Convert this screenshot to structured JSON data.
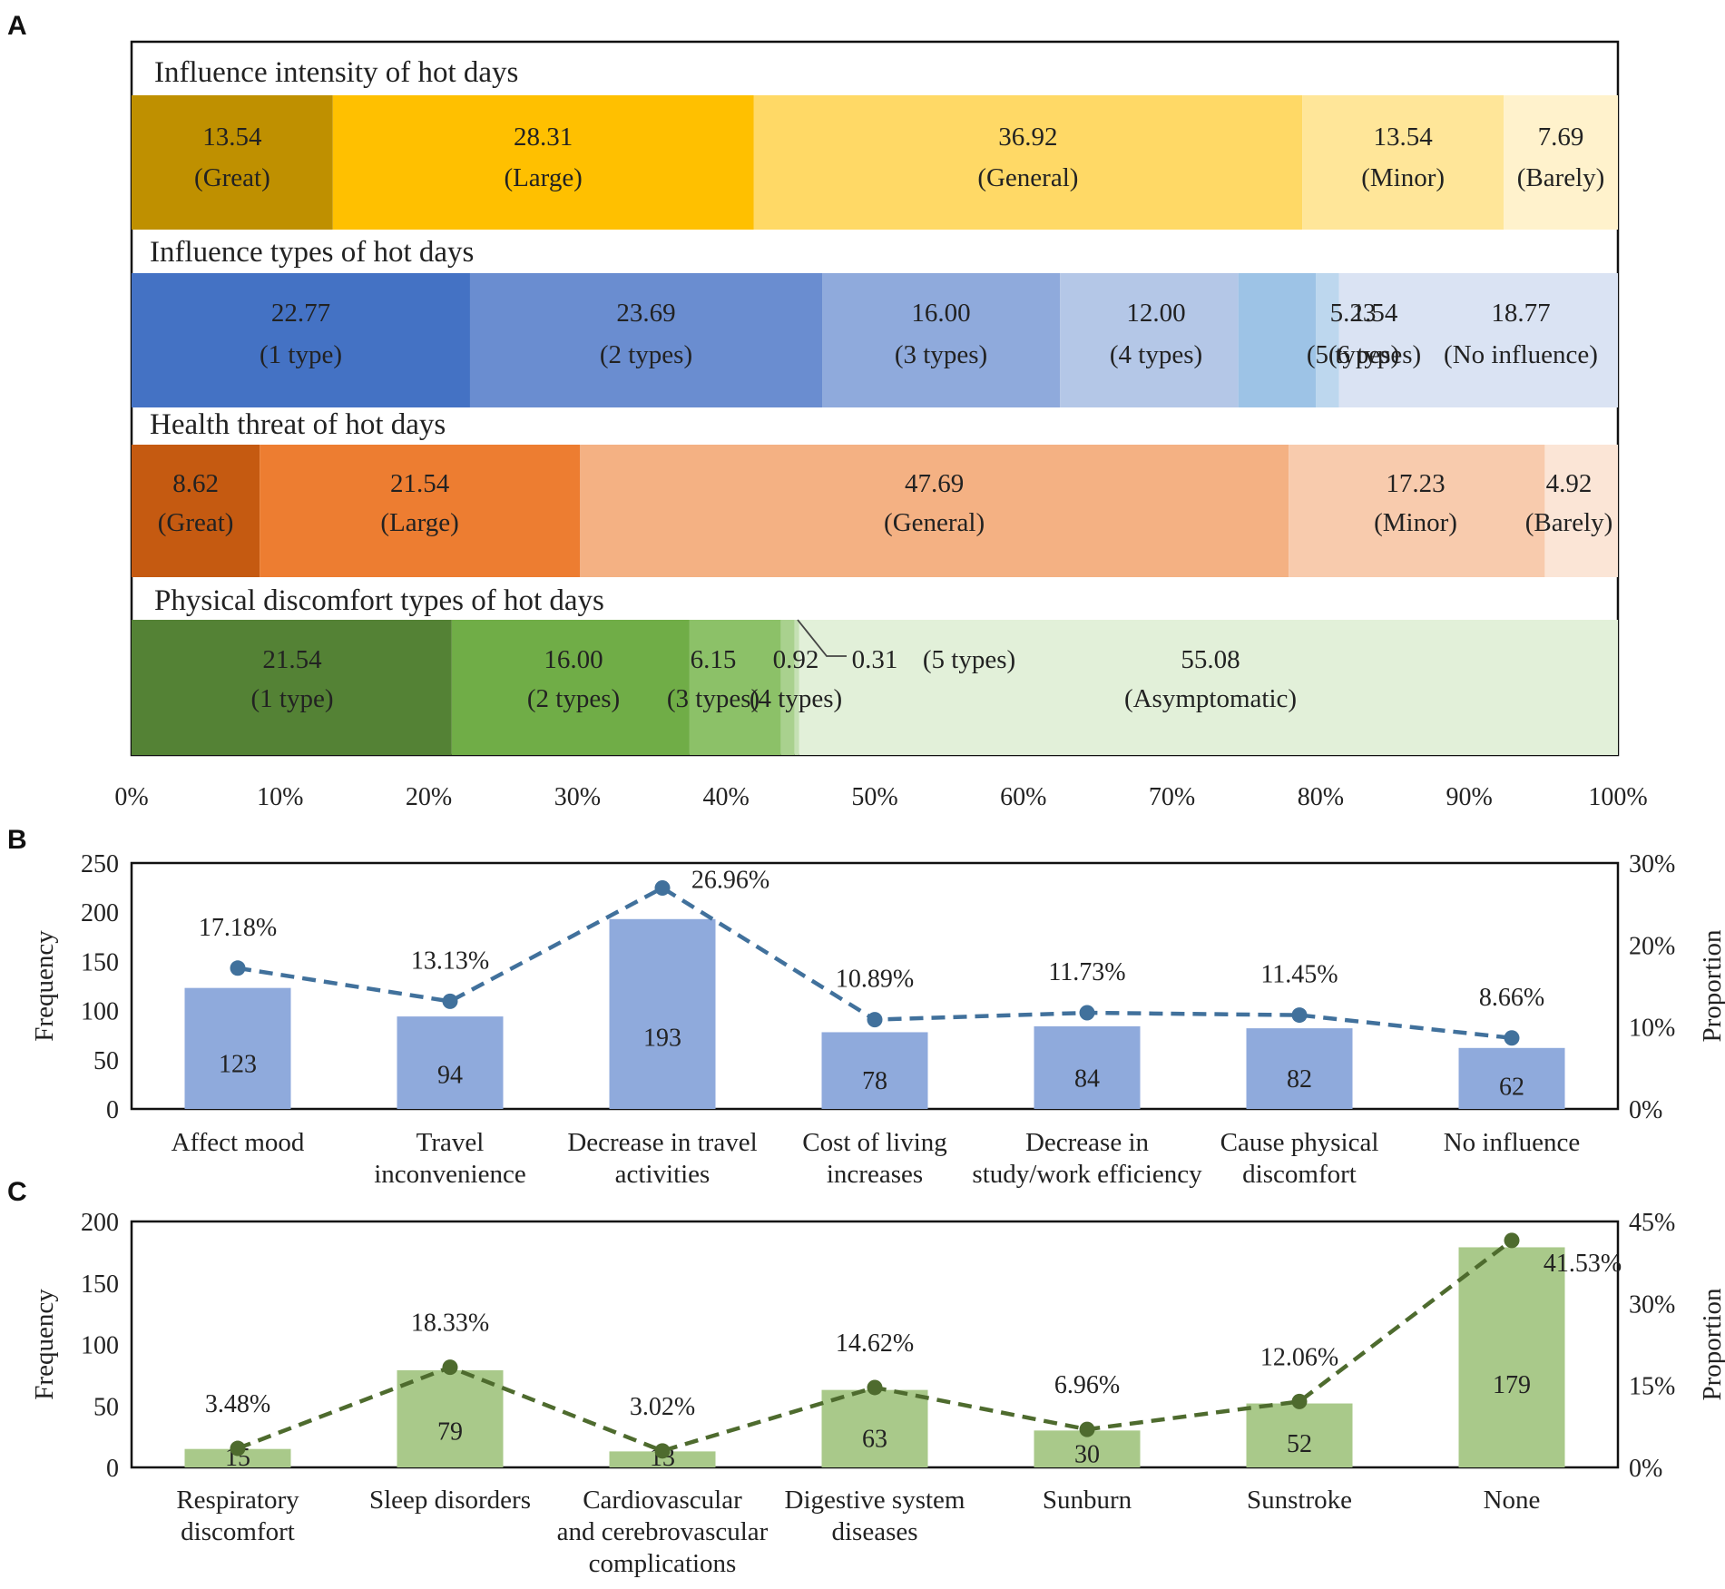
{
  "chart_data": [
    {
      "panel": "A",
      "type": "bar",
      "subtype": "stacked-100-percent-horizontal",
      "x_ticks": [
        "0%",
        "10%",
        "20%",
        "30%",
        "40%",
        "50%",
        "60%",
        "70%",
        "80%",
        "90%",
        "100%"
      ],
      "xlim": [
        0,
        100
      ],
      "rows": [
        {
          "title": "Influence intensity of hot days",
          "segments": [
            {
              "value": 13.54,
              "value_label": "13.54",
              "category": "(Great)",
              "color": "#BF9000"
            },
            {
              "value": 28.31,
              "value_label": "28.31",
              "category": "(Large)",
              "color": "#FFC000"
            },
            {
              "value": 36.92,
              "value_label": "36.92",
              "category": "(General)",
              "color": "#FFD966"
            },
            {
              "value": 13.54,
              "value_label": "13.54",
              "category": "(Minor)",
              "color": "#FFE699"
            },
            {
              "value": 7.69,
              "value_label": "7.69",
              "category": "(Barely)",
              "color": "#FFF2CC"
            }
          ]
        },
        {
          "title": "Influence types of hot days",
          "segments": [
            {
              "value": 22.77,
              "value_label": "22.77",
              "category": "(1 type)",
              "color": "#4472C4"
            },
            {
              "value": 23.69,
              "value_label": "23.69",
              "category": "(2 types)",
              "color": "#6A8DD0"
            },
            {
              "value": 16.0,
              "value_label": "16.00",
              "category": "(3 types)",
              "color": "#8FAADC"
            },
            {
              "value": 12.0,
              "value_label": "12.00",
              "category": "(4 types)",
              "color": "#B4C7E7"
            },
            {
              "value": 5.23,
              "value_label": "5.23",
              "category": "(5 types)",
              "color": "#9DC3E6"
            },
            {
              "value": 1.54,
              "value_label": "1.54",
              "category": "(6 types)",
              "color": "#BDD7EE"
            },
            {
              "value": 18.77,
              "value_label": "18.77",
              "category": "(No influence)",
              "color": "#DAE3F3"
            }
          ]
        },
        {
          "title": "Health threat of hot days",
          "segments": [
            {
              "value": 8.62,
              "value_label": "8.62",
              "category": "(Great)",
              "color": "#C55A11"
            },
            {
              "value": 21.54,
              "value_label": "21.54",
              "category": "(Large)",
              "color": "#ED7D31"
            },
            {
              "value": 47.69,
              "value_label": "47.69",
              "category": "(General)",
              "color": "#F4B183"
            },
            {
              "value": 17.23,
              "value_label": "17.23",
              "category": "(Minor)",
              "color": "#F8CBAD"
            },
            {
              "value": 4.92,
              "value_label": "4.92",
              "category": "(Barely)",
              "color": "#FBE5D6"
            }
          ]
        },
        {
          "title": "Physical discomfort types of hot days",
          "segments": [
            {
              "value": 21.54,
              "value_label": "21.54",
              "category": "(1 type)",
              "color": "#548235"
            },
            {
              "value": 16.0,
              "value_label": "16.00",
              "category": "(2 types)",
              "color": "#70AD47"
            },
            {
              "value": 6.15,
              "value_label": "6.15",
              "category": "(3 types)",
              "color": "#8CC168"
            },
            {
              "value": 0.92,
              "value_label": "0.92",
              "category": "(4 types)",
              "color": "#A9D18E"
            },
            {
              "value": 0.31,
              "value_label": "0.31",
              "category": "(5 types)",
              "color": "#C5E0B4"
            },
            {
              "value": 55.08,
              "value_label": "55.08",
              "category": "(Asymptomatic)",
              "color": "#E2F0D9"
            }
          ]
        }
      ]
    },
    {
      "panel": "B",
      "type": "bar",
      "subtype": "bar-with-line-dual-axis",
      "categories": [
        [
          "Affect mood"
        ],
        [
          "Travel",
          "inconvenience"
        ],
        [
          "Decrease in travel",
          "activities"
        ],
        [
          "Cost of living",
          "increases"
        ],
        [
          "Decrease in",
          "study/work efficiency"
        ],
        [
          "Cause physical",
          "discomfort"
        ],
        [
          "No influence"
        ]
      ],
      "values": [
        123,
        94,
        193,
        78,
        84,
        82,
        62
      ],
      "value_labels": [
        "123",
        "94",
        "193",
        "78",
        "84",
        "82",
        "62"
      ],
      "proportions": [
        17.18,
        13.13,
        26.96,
        10.89,
        11.73,
        11.45,
        8.66
      ],
      "proportion_labels": [
        "17.18%",
        "13.13%",
        "26.96%",
        "10.89%",
        "11.73%",
        "11.45%",
        "8.66%"
      ],
      "ylabel": "Frequency",
      "y2label": "Proportion",
      "ylim": [
        0,
        250
      ],
      "y_ticks": [
        "0",
        "50",
        "100",
        "150",
        "200",
        "250"
      ],
      "y2lim": [
        0,
        30
      ],
      "y2_ticks": [
        "0%",
        "10%",
        "20%",
        "30%"
      ],
      "bar_color": "#8FAADC",
      "line_color": "#41719C"
    },
    {
      "panel": "C",
      "type": "bar",
      "subtype": "bar-with-line-dual-axis",
      "categories": [
        [
          "Respiratory",
          "discomfort"
        ],
        [
          "Sleep disorders"
        ],
        [
          "Cardiovascular",
          "and cerebrovascular",
          "complications"
        ],
        [
          "Digestive system",
          "diseases"
        ],
        [
          "Sunburn"
        ],
        [
          "Sunstroke"
        ],
        [
          "None"
        ]
      ],
      "values": [
        15,
        79,
        13,
        63,
        30,
        52,
        179
      ],
      "value_labels": [
        "15",
        "79",
        "13",
        "63",
        "30",
        "52",
        "179"
      ],
      "proportions": [
        3.48,
        18.33,
        3.02,
        14.62,
        6.96,
        12.06,
        41.53
      ],
      "proportion_labels": [
        "3.48%",
        "18.33%",
        "3.02%",
        "14.62%",
        "6.96%",
        "12.06%",
        "41.53%"
      ],
      "ylabel": "Frequency",
      "y2label": "Proportion",
      "ylim": [
        0,
        200
      ],
      "y_ticks": [
        "0",
        "50",
        "100",
        "150",
        "200"
      ],
      "y2lim": [
        0,
        45
      ],
      "y2_ticks": [
        "0%",
        "15%",
        "30%",
        "45%"
      ],
      "bar_color": "#A9C98A",
      "line_color": "#4E6B2E"
    }
  ],
  "panels": {
    "a": "A",
    "b": "B",
    "c": "C"
  }
}
